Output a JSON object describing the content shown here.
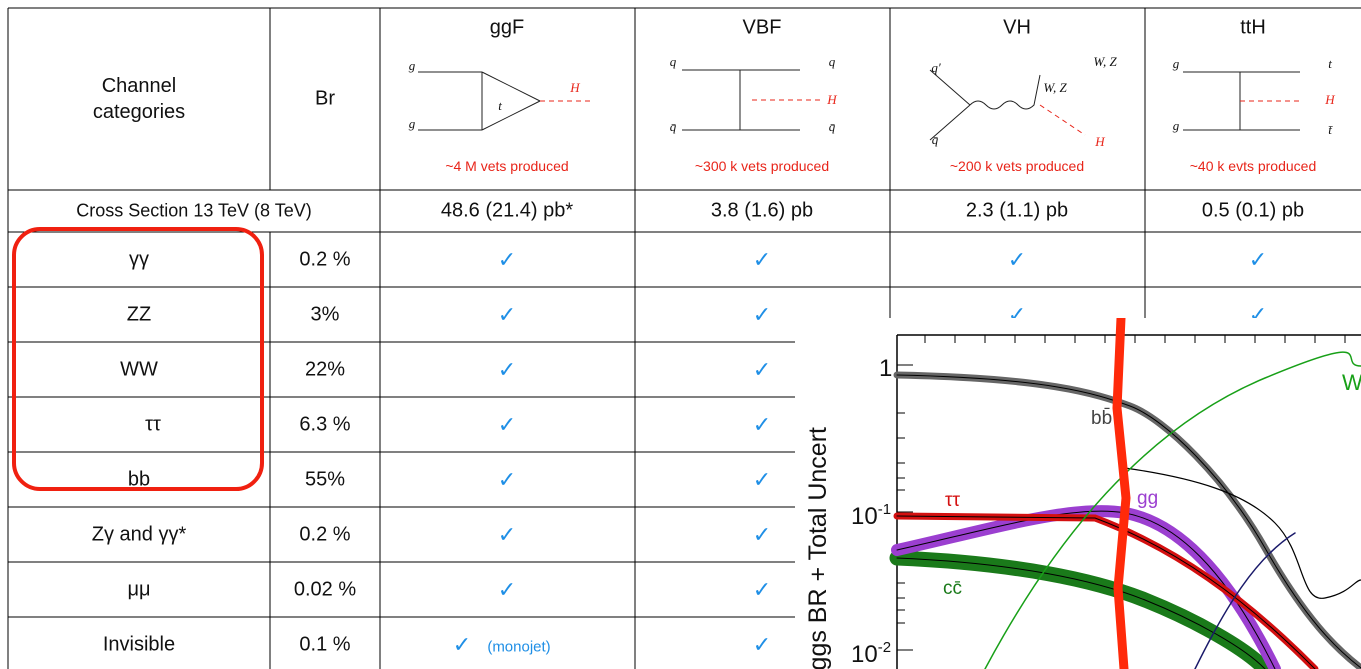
{
  "table": {
    "header": {
      "channel": "Channel categories",
      "br": "Br",
      "productions": [
        {
          "name": "ggF",
          "caption": "~4 M vets produced",
          "labels": [
            "g",
            "g",
            "t",
            "H"
          ]
        },
        {
          "name": "VBF",
          "caption": "~300 k vets produced",
          "labels": [
            "q",
            "q",
            "H",
            "q̄",
            "q̄"
          ]
        },
        {
          "name": "VH",
          "caption": "~200 k vets produced",
          "labels": [
            "q′",
            "W, Z",
            "W, Z",
            "q̄",
            "H"
          ]
        },
        {
          "name": "ttH",
          "caption": "~40 k evts produced",
          "labels": [
            "g",
            "t",
            "H",
            "g",
            "t̄"
          ]
        }
      ]
    },
    "cross_section": {
      "label": "Cross Section 13 TeV (8 TeV)",
      "values": [
        "48.6 (21.4) pb*",
        "3.8 (1.6) pb",
        "2.3 (1.1) pb",
        "0.5 (0.1) pb"
      ]
    },
    "rows": [
      {
        "channel": "γγ",
        "br": "0.2 %",
        "checks": [
          "✓",
          "✓",
          "✓",
          "✓"
        ]
      },
      {
        "channel": "ZZ",
        "br": "3%",
        "checks": [
          "✓",
          "✓",
          "✓",
          "✓"
        ]
      },
      {
        "channel": "WW",
        "br": "22%",
        "checks": [
          "✓",
          "✓"
        ]
      },
      {
        "channel": "ττ",
        "br": "6.3 %",
        "checks": [
          "✓",
          "✓"
        ]
      },
      {
        "channel": "bb",
        "br": "55%",
        "checks": [
          "✓",
          "✓"
        ]
      },
      {
        "channel": "Zγ and γγ*",
        "br": "0.2 %",
        "checks": [
          "✓",
          "✓"
        ]
      },
      {
        "channel": "μμ",
        "br": "0.02 %",
        "checks": [
          "✓",
          "✓"
        ]
      },
      {
        "channel": "Invisible",
        "br": "0.1 %",
        "checks": [
          "✓",
          "✓"
        ],
        "note": "(monojet)"
      }
    ]
  },
  "inset": {
    "y_axis_label": "iggs BR + Total Uncert",
    "tick_labels": [
      {
        "base": "1"
      },
      {
        "base": "10",
        "exponent": "-1"
      },
      {
        "base": "10",
        "exponent": "-2"
      }
    ],
    "curve_labels": [
      "bb̄",
      "ττ",
      "gg",
      "cc̄",
      "W"
    ]
  }
}
